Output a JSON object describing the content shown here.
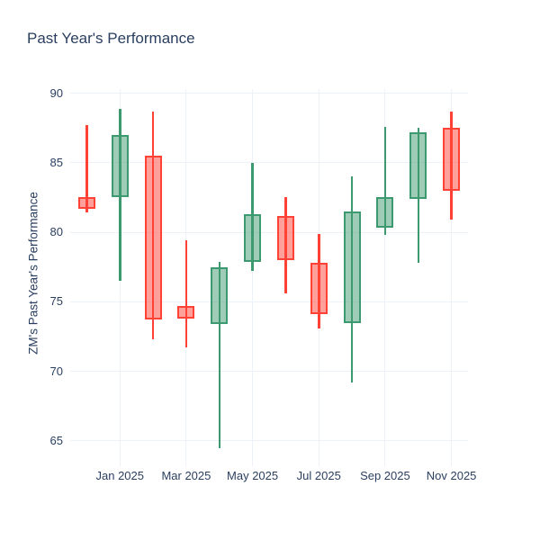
{
  "figure": {
    "title": "Past Year's Performance",
    "background_color": "#ffffff",
    "text_color": "#2a3f5f",
    "grid_color": "#edf1f8"
  },
  "chart_data": {
    "type": "candlestick",
    "title": "Past Year's Performance",
    "xlabel": "",
    "ylabel": "ZM's Past Year's Performance",
    "x_tick_labels": [
      "Jan 2025",
      "Mar 2025",
      "May 2025",
      "Jul 2025",
      "Sep 2025",
      "Nov 2025"
    ],
    "y_tick_labels": [
      "90",
      "85",
      "80",
      "75",
      "70",
      "65"
    ],
    "ylim": [
      63.5,
      90.3
    ],
    "grid": true,
    "legend": false,
    "increasing_color": "#3D9970",
    "increasing_fill": "rgba(61,153,112,0.5)",
    "decreasing_color": "#FF4136",
    "decreasing_fill": "rgba(255,65,54,0.5)",
    "candles": [
      {
        "month": "Dec 2024",
        "open": 82.5,
        "high": 87.7,
        "low": 81.4,
        "close": 81.7
      },
      {
        "month": "Jan 2025",
        "open": 82.5,
        "high": 88.9,
        "low": 76.5,
        "close": 87.0
      },
      {
        "month": "Feb 2025",
        "open": 85.5,
        "high": 88.7,
        "low": 72.3,
        "close": 73.7
      },
      {
        "month": "Mar 2025",
        "open": 74.7,
        "high": 79.4,
        "low": 71.7,
        "close": 73.8
      },
      {
        "month": "Apr 2025",
        "open": 73.4,
        "high": 77.9,
        "low": 64.5,
        "close": 77.5
      },
      {
        "month": "May 2025",
        "open": 77.9,
        "high": 85.0,
        "low": 77.2,
        "close": 81.3
      },
      {
        "month": "Jun 2025",
        "open": 81.2,
        "high": 82.5,
        "low": 75.6,
        "close": 78.0
      },
      {
        "month": "Jul 2025",
        "open": 77.8,
        "high": 79.9,
        "low": 73.1,
        "close": 74.1
      },
      {
        "month": "Aug 2025",
        "open": 73.5,
        "high": 84.0,
        "low": 69.2,
        "close": 81.5
      },
      {
        "month": "Sep 2025",
        "open": 80.3,
        "high": 87.6,
        "low": 79.8,
        "close": 82.5
      },
      {
        "month": "Oct 2025",
        "open": 82.4,
        "high": 87.5,
        "low": 77.8,
        "close": 87.2
      },
      {
        "month": "Nov 2025",
        "open": 87.5,
        "high": 88.7,
        "low": 80.9,
        "close": 83.0
      }
    ]
  }
}
